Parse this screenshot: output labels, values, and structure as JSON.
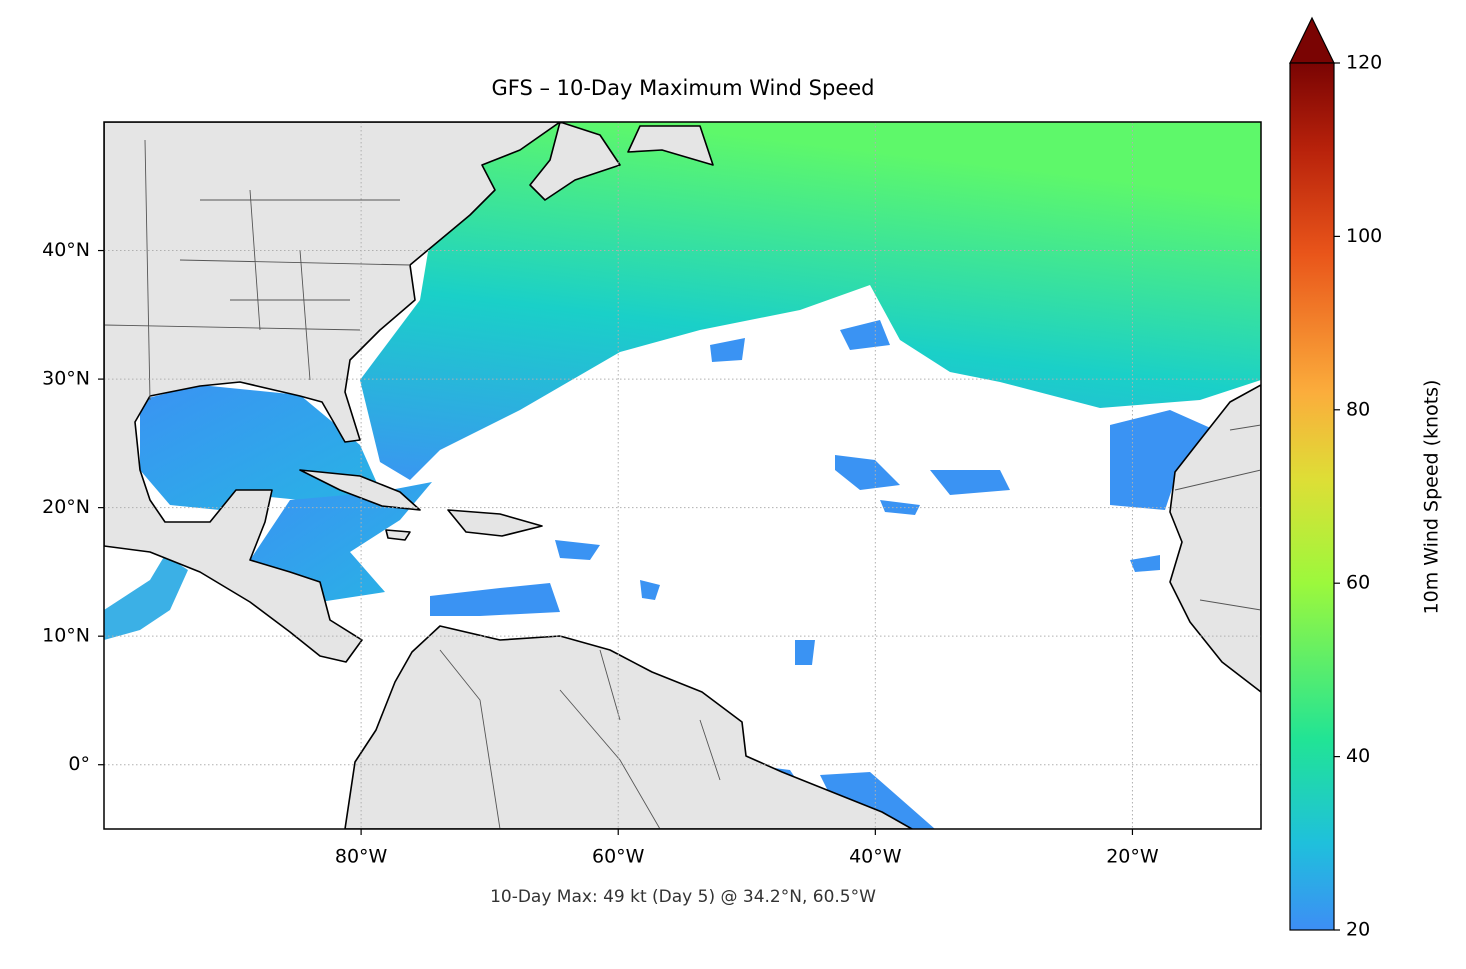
{
  "title": "GFS – 10-Day Maximum Wind Speed",
  "footer": "10-Day Max: 49 kt (Day 5) @ 34.2°N, 60.5°W",
  "map": {
    "xlim": [
      -100,
      -10
    ],
    "ylim": [
      -5,
      50
    ],
    "xticks": [
      {
        "value": -80,
        "label": "80°W"
      },
      {
        "value": -60,
        "label": "60°W"
      },
      {
        "value": -40,
        "label": "40°W"
      },
      {
        "value": -20,
        "label": "20°W"
      }
    ],
    "yticks": [
      {
        "value": 0,
        "label": "0°"
      },
      {
        "value": 10,
        "label": "10°N"
      },
      {
        "value": 20,
        "label": "20°N"
      },
      {
        "value": 30,
        "label": "30°N"
      },
      {
        "value": 40,
        "label": "40°N"
      }
    ]
  },
  "colorbar": {
    "label": "10m Wind Speed (knots)",
    "lim": [
      20,
      120
    ],
    "ticks": [
      20,
      40,
      60,
      80,
      100,
      120
    ]
  }
}
